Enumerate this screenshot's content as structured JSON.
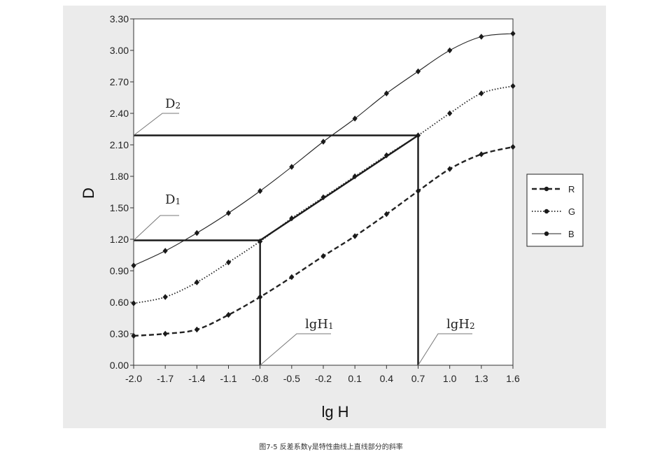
{
  "chart_data": {
    "type": "line",
    "title": "",
    "xlabel": "lg H",
    "ylabel": "D",
    "xlim": [
      -2.0,
      1.6
    ],
    "ylim": [
      0.0,
      3.3
    ],
    "x_ticks": [
      "-2.0",
      "-1.7",
      "-1.4",
      "-1.1",
      "-0.8",
      "-0.5",
      "-0.2",
      "0.1",
      "0.4",
      "0.7",
      "1.0",
      "1.3",
      "1.6"
    ],
    "y_ticks": [
      "0.00",
      "0.30",
      "0.60",
      "0.90",
      "1.20",
      "1.50",
      "1.80",
      "2.10",
      "2.40",
      "2.70",
      "3.00",
      "3.30"
    ],
    "grid": false,
    "legend_position": "right",
    "x": [
      -2.0,
      -1.7,
      -1.4,
      -1.1,
      -0.8,
      -0.5,
      -0.2,
      0.1,
      0.4,
      0.7,
      1.0,
      1.3,
      1.6
    ],
    "series": [
      {
        "name": "R",
        "style": "dashed",
        "color": "#222222",
        "values": [
          0.28,
          0.3,
          0.34,
          0.48,
          0.65,
          0.84,
          1.04,
          1.23,
          1.44,
          1.66,
          1.87,
          2.01,
          2.08
        ]
      },
      {
        "name": "G",
        "style": "dotted",
        "color": "#222222",
        "values": [
          0.59,
          0.65,
          0.79,
          0.98,
          1.18,
          1.4,
          1.6,
          1.8,
          2.0,
          2.19,
          2.4,
          2.59,
          2.66
        ]
      },
      {
        "name": "B",
        "style": "solid",
        "color": "#222222",
        "values": [
          0.95,
          1.09,
          1.26,
          1.45,
          1.66,
          1.89,
          2.13,
          2.35,
          2.59,
          2.8,
          3.0,
          3.13,
          3.16
        ]
      }
    ],
    "annotations": {
      "D1": {
        "label_main": "D",
        "label_sub": "1",
        "value": 1.19
      },
      "D2": {
        "label_main": "D",
        "label_sub": "2",
        "value": 2.19
      },
      "lgH1": {
        "label_main": "lgH",
        "label_sub": "1",
        "value": -0.8
      },
      "lgH2": {
        "label_main": "lgH",
        "label_sub": "2",
        "value": 0.7
      }
    }
  },
  "caption": "图7-5   反差系数γ是特性曲线上直线部分的斜率"
}
